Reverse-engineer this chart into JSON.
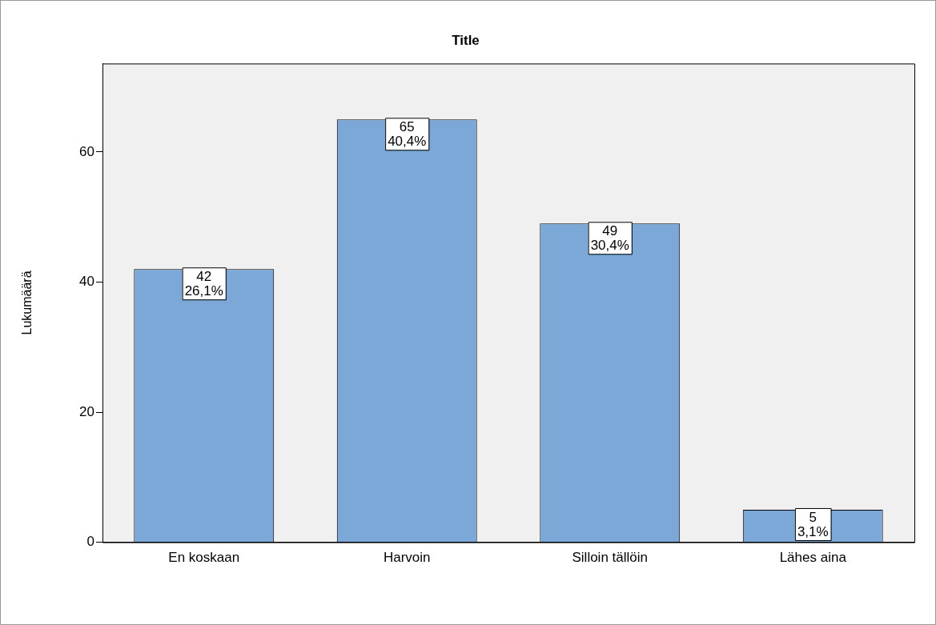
{
  "chart_data": {
    "type": "bar",
    "title": "Title",
    "ylabel": "Lukumäärä",
    "categories": [
      "En koskaan",
      "Harvoin",
      "Silloin tällöin",
      "Lähes aina"
    ],
    "values": [
      42,
      65,
      49,
      5
    ],
    "value_labels": [
      "42\n26,1%",
      "65\n40,4%",
      "49\n30,4%",
      "5\n3,1%"
    ],
    "color": "#7ba8d6",
    "ylim": [
      0,
      73.6
    ],
    "yticks": [
      0,
      20,
      40,
      60
    ],
    "grid": false,
    "legend": false
  }
}
